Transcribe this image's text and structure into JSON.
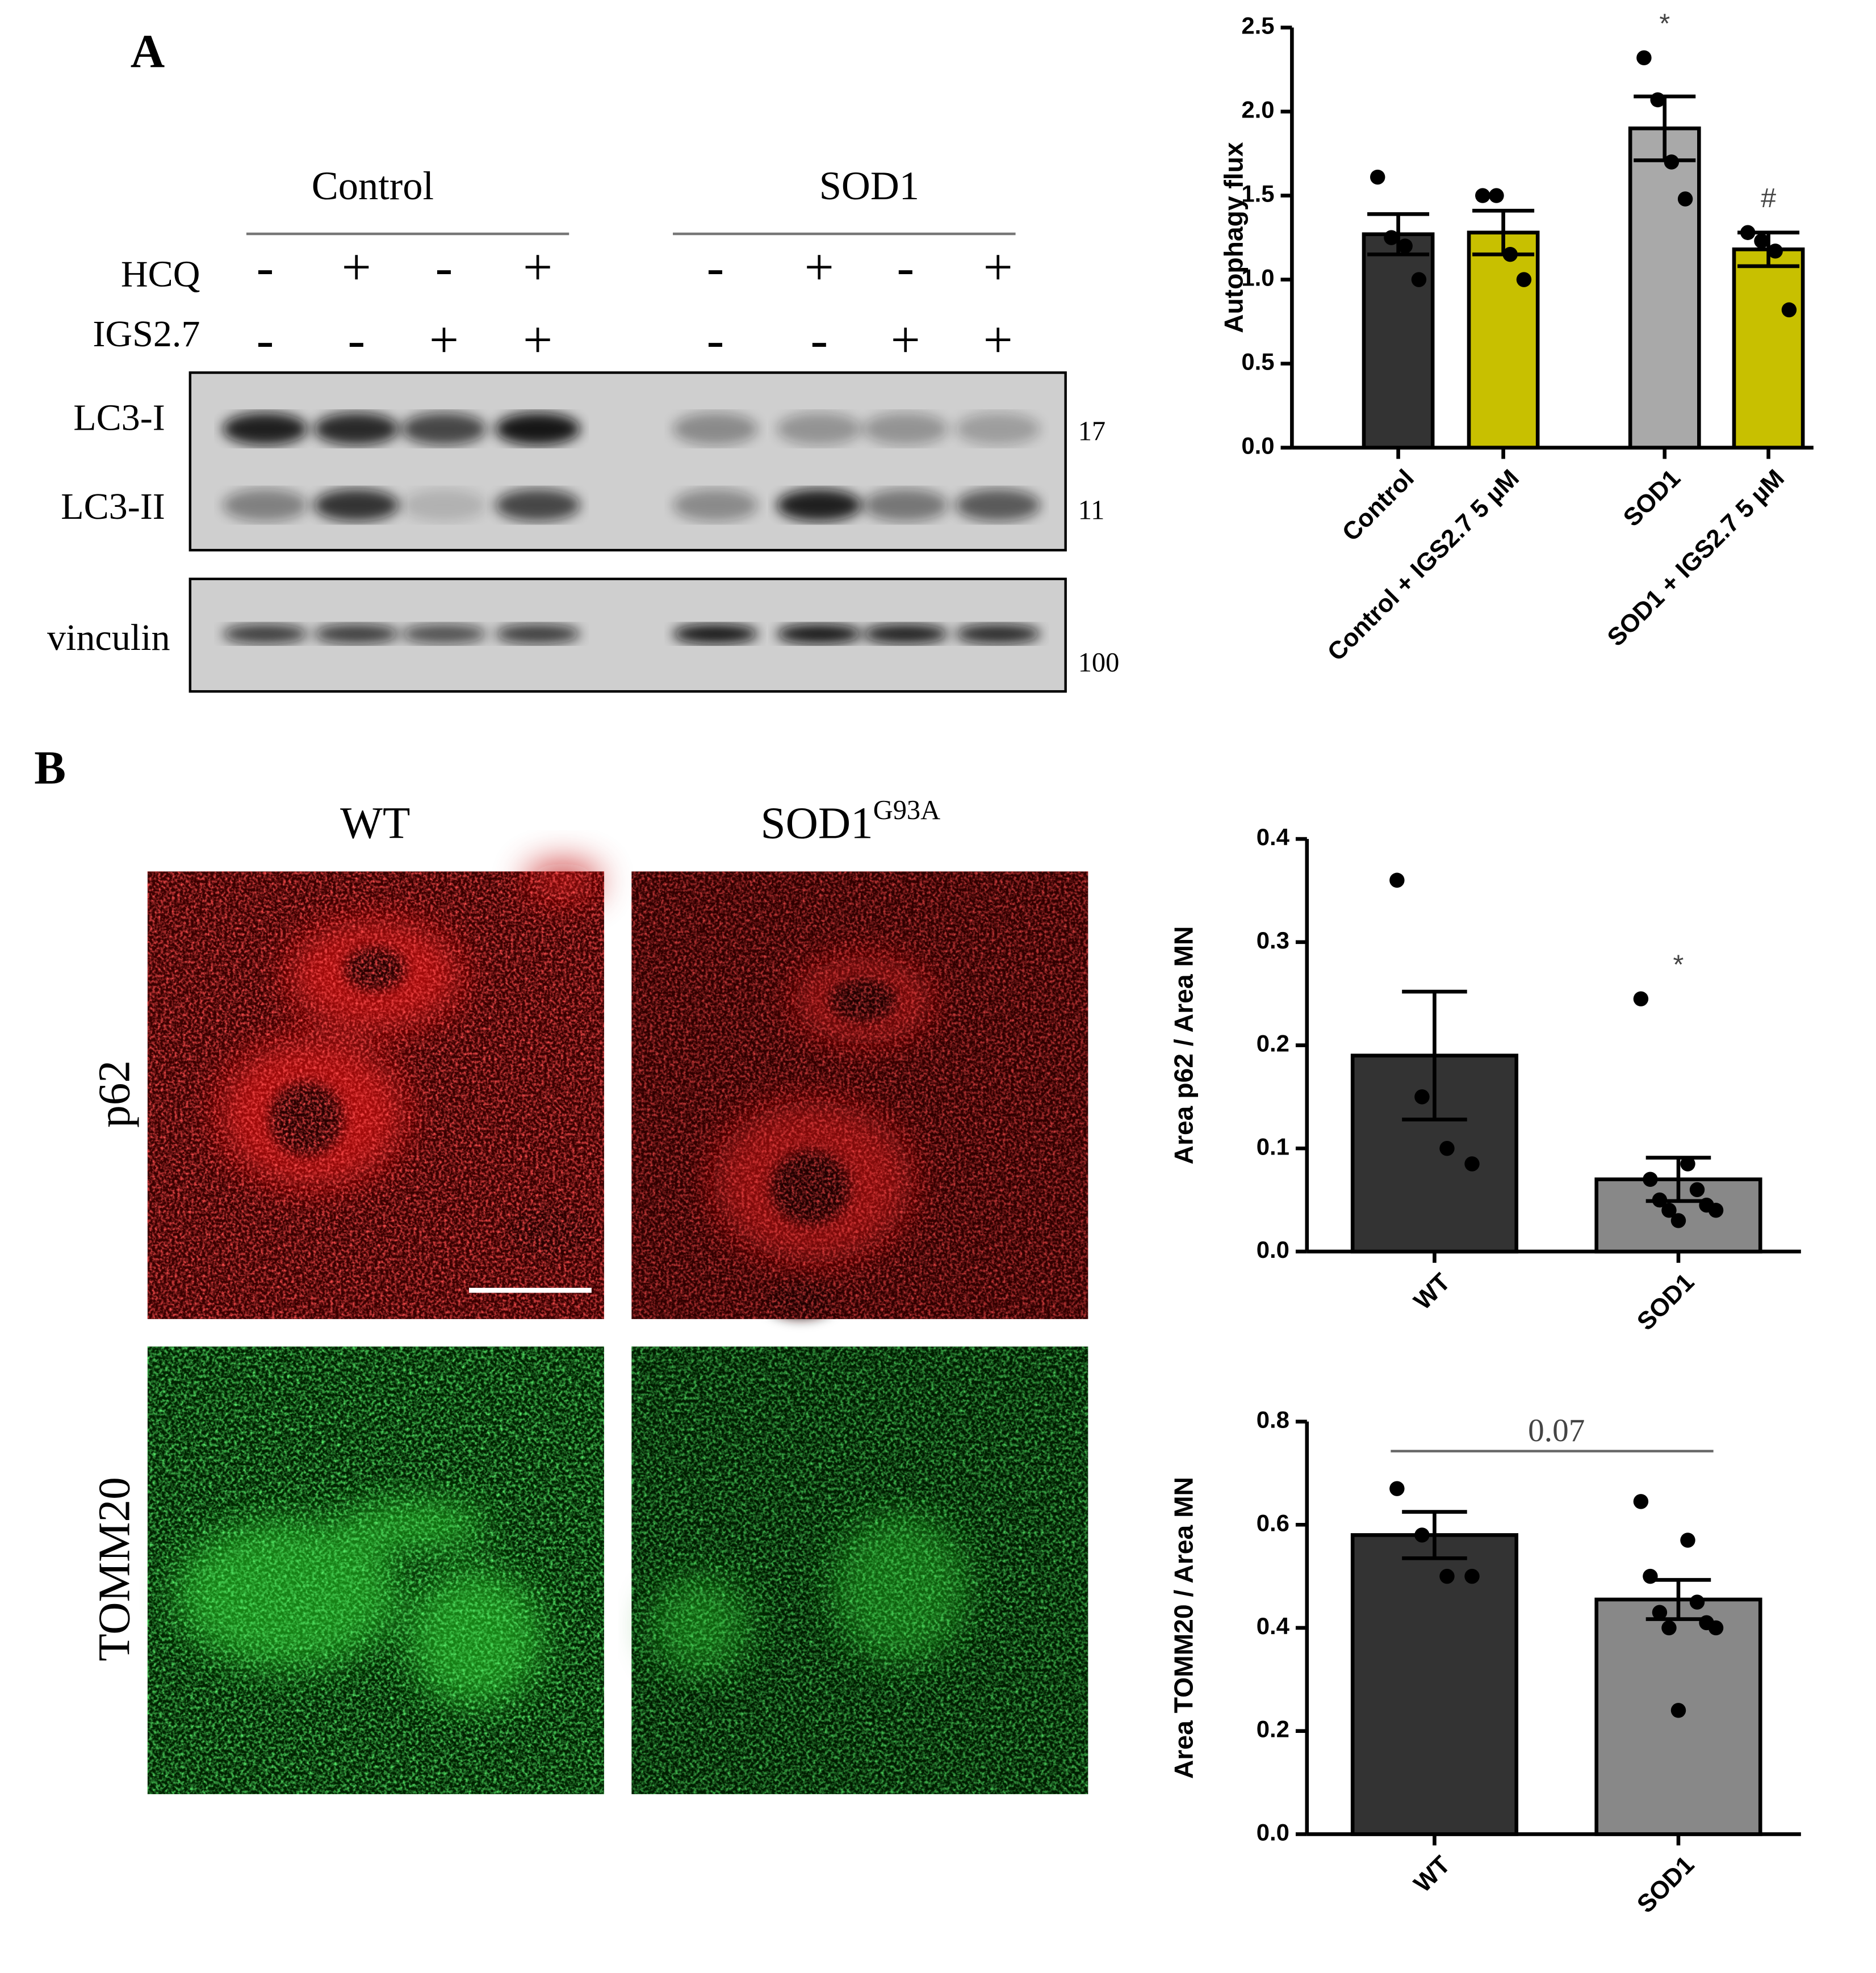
{
  "figure": {
    "panel_labels": [
      "A",
      "B"
    ],
    "blot": {
      "groups": [
        "Control",
        "SOD1"
      ],
      "rows": [
        {
          "label": "HCQ",
          "signs": [
            "-",
            "+",
            "-",
            "+",
            "-",
            "+",
            "-",
            "+"
          ]
        },
        {
          "label": "IGS2.7",
          "signs": [
            "-",
            "-",
            "+",
            "+",
            "-",
            "-",
            "+",
            "+"
          ]
        }
      ],
      "bands": [
        "LC3-I",
        "LC3-II",
        "vinculin"
      ],
      "markers": [
        "17",
        "11",
        "100"
      ]
    },
    "images": {
      "columns": [
        "WT",
        "SOD1"
      ],
      "superscript": "G93A",
      "rows": [
        "p62",
        "TOMM20"
      ]
    }
  },
  "chart_data": [
    {
      "type": "bar",
      "y_label": "Autophagy flux",
      "categories": [
        "Control",
        "Control + IGS2.7 5 µM",
        "SOD1",
        "SOD1 + IGS2.7 5 µM"
      ],
      "values": [
        1.27,
        1.28,
        1.9,
        1.18
      ],
      "errors": [
        0.12,
        0.13,
        0.19,
        0.1
      ],
      "points": [
        [
          1.61,
          1.25,
          1.2,
          1.0
        ],
        [
          1.5,
          1.5,
          1.15,
          1.0
        ],
        [
          2.32,
          2.07,
          1.7,
          1.48
        ],
        [
          1.28,
          1.23,
          1.17,
          0.82
        ]
      ],
      "colors": [
        "#333333",
        "#c8c000",
        "#a9a9a9",
        "#c8c000"
      ],
      "markers": [
        null,
        null,
        "*",
        "#"
      ],
      "ylim": [
        0,
        2.5
      ],
      "yticks": [
        {
          "value": 0,
          "label": "0.0"
        },
        0.5,
        {
          "value": 1,
          "label": "1.0"
        },
        1.5,
        {
          "value": 2,
          "label": "2.0"
        },
        2.5
      ]
    },
    {
      "type": "bar",
      "y_label": "Area p62 / Area MN",
      "categories": [
        "WT",
        "SOD1"
      ],
      "values": [
        0.19,
        0.07
      ],
      "errors": [
        0.062,
        0.021
      ],
      "points": [
        [
          0.36,
          0.15,
          0.1,
          0.085
        ],
        [
          0.245,
          0.085,
          0.07,
          0.06,
          0.05,
          0.045,
          0.04,
          0.04,
          0.03
        ]
      ],
      "colors": [
        "#333333",
        "#888888"
      ],
      "markers": [
        null,
        "*"
      ],
      "ylim": [
        0,
        0.4
      ],
      "yticks": [
        {
          "value": 0,
          "label": "0.0"
        },
        0.1,
        0.2,
        0.3,
        0.4
      ]
    },
    {
      "type": "bar",
      "y_label": "Area TOMM20 / Area MN",
      "categories": [
        "WT",
        "SOD1"
      ],
      "values": [
        0.58,
        0.455
      ],
      "errors": [
        0.045,
        0.038
      ],
      "points": [
        [
          0.67,
          0.58,
          0.5,
          0.5
        ],
        [
          0.645,
          0.57,
          0.5,
          0.45,
          0.43,
          0.41,
          0.4,
          0.4,
          0.24
        ]
      ],
      "colors": [
        "#333333",
        "#888888"
      ],
      "bracket_label": "0.07",
      "ylim": [
        0,
        0.8
      ],
      "yticks": [
        {
          "value": 0,
          "label": "0.0"
        },
        0.2,
        0.4,
        0.6,
        0.8
      ]
    }
  ]
}
